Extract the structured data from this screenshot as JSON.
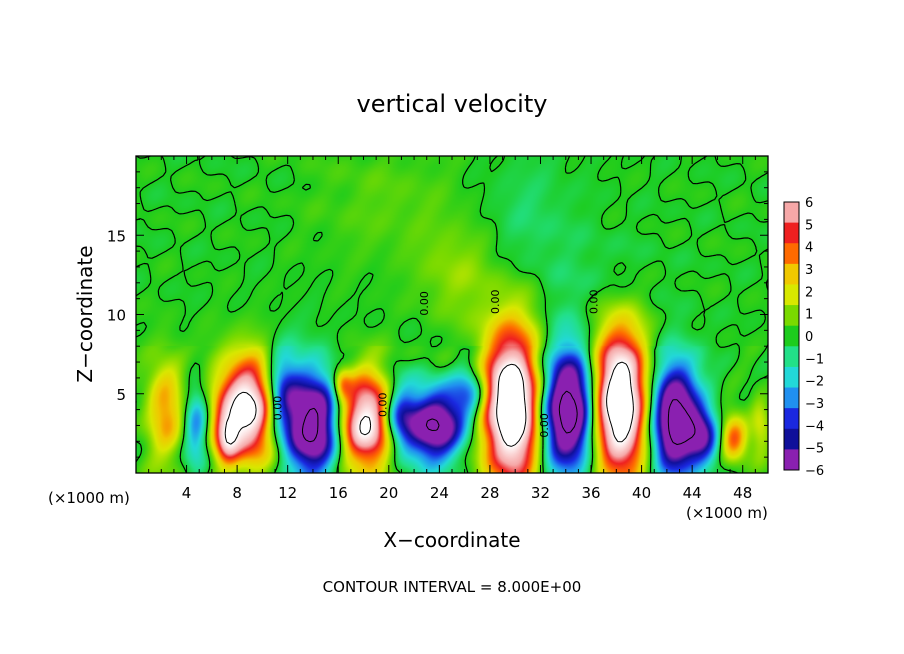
{
  "chart_data": {
    "type": "heatmap",
    "title": "vertical velocity",
    "xlabel": "X−coordinate",
    "ylabel": "Z−coordinate",
    "x_unit_left": "(×1000 m)",
    "x_unit_right": "(×1000 m)",
    "footer": "CONTOUR INTERVAL = 8.000E+00",
    "xlim": [
      0,
      50
    ],
    "ylim": [
      0,
      20
    ],
    "x_ticks": [
      4,
      8,
      12,
      16,
      20,
      24,
      28,
      32,
      36,
      40,
      44,
      48
    ],
    "x_tick_labels": [
      "4",
      "8",
      "12",
      "16",
      "20",
      "24",
      "28",
      "32",
      "36",
      "40",
      "44",
      "48"
    ],
    "y_ticks": [
      5,
      10,
      15
    ],
    "y_tick_labels": [
      "5",
      "10",
      "15"
    ],
    "colorbar": {
      "range": [
        -6,
        6
      ],
      "tick_labels": [
        "6",
        "5",
        "4",
        "3",
        "2",
        "1",
        "0",
        "−1",
        "−2",
        "−3",
        "−4",
        "−5",
        "−6"
      ],
      "colors": [
        "#f6a8a8",
        "#ef2020",
        "#ff6a00",
        "#f0c800",
        "#d8e800",
        "#7ada00",
        "#1dcc1d",
        "#22e088",
        "#22d8d8",
        "#2090f0",
        "#1a28e0",
        "#10109a",
        "#8a20b0"
      ]
    },
    "contour_labels": [
      {
        "text": "0.00",
        "x": 28.7,
        "y": 10.8
      },
      {
        "text": "0.00",
        "x": 23.1,
        "y": 10.7
      },
      {
        "text": "0.00",
        "x": 36.5,
        "y": 10.8
      },
      {
        "text": "0.00",
        "x": 11.5,
        "y": 4.1
      },
      {
        "text": "0.00",
        "x": 19.8,
        "y": 4.3
      },
      {
        "text": "0.00",
        "x": 32.6,
        "y": 3.0
      }
    ],
    "features": [
      {
        "type": "updraft",
        "x": 2.3,
        "z": 4.0,
        "w": 1.5,
        "h": 3.3,
        "amp": 3.5
      },
      {
        "type": "downdraft",
        "x": 4.8,
        "z": 3.0,
        "w": 1.0,
        "h": 2.6,
        "amp": -3.5
      },
      {
        "type": "updraft",
        "x": 7.2,
        "z": 2.2,
        "w": 0.9,
        "h": 1.6,
        "amp": 4.0
      },
      {
        "type": "updraft",
        "x": 8.9,
        "z": 4.0,
        "w": 2.6,
        "h": 3.2,
        "amp": 9.0
      },
      {
        "type": "downdraft",
        "x": 11.5,
        "z": 4.8,
        "w": 1.4,
        "h": 2.8,
        "amp": -5.0
      },
      {
        "type": "downdraft",
        "x": 14.0,
        "z": 3.1,
        "w": 2.2,
        "h": 3.2,
        "amp": -9.0
      },
      {
        "type": "updraft",
        "x": 16.3,
        "z": 5.6,
        "w": 0.7,
        "h": 1.0,
        "amp": 3.0
      },
      {
        "type": "updraft",
        "x": 18.2,
        "z": 3.2,
        "w": 2.3,
        "h": 3.0,
        "amp": 8.5
      },
      {
        "type": "downdraft",
        "x": 20.8,
        "z": 3.5,
        "w": 1.3,
        "h": 2.2,
        "amp": -4.5
      },
      {
        "type": "downdraft",
        "x": 23.6,
        "z": 3.0,
        "w": 2.3,
        "h": 2.2,
        "amp": -8.0
      },
      {
        "type": "downdraft",
        "x": 26.5,
        "z": 5.0,
        "w": 1.4,
        "h": 1.8,
        "amp": -3.5
      },
      {
        "type": "updraft",
        "x": 29.8,
        "z": 4.2,
        "w": 2.4,
        "h": 4.8,
        "amp": 11.0
      },
      {
        "type": "downdraft",
        "x": 34.2,
        "z": 4.0,
        "w": 2.3,
        "h": 3.8,
        "amp": -10.0
      },
      {
        "type": "updraft",
        "x": 38.2,
        "z": 4.4,
        "w": 2.3,
        "h": 4.6,
        "amp": 11.0
      },
      {
        "type": "downdraft",
        "x": 42.6,
        "z": 3.4,
        "w": 1.9,
        "h": 3.4,
        "amp": -9.5
      },
      {
        "type": "downdraft",
        "x": 44.9,
        "z": 2.3,
        "w": 1.3,
        "h": 1.6,
        "amp": -5.0
      },
      {
        "type": "updraft",
        "x": 47.3,
        "z": 2.2,
        "w": 1.1,
        "h": 1.4,
        "amp": 4.5
      },
      {
        "type": "updraft",
        "x": 49.4,
        "z": 3.0,
        "w": 0.8,
        "h": 2.0,
        "amp": 2.0
      },
      {
        "type": "updraft",
        "x": 20.0,
        "z": 17.0,
        "w": 6.0,
        "h": 4.0,
        "amp": 0.6
      },
      {
        "type": "updraft",
        "x": 25.5,
        "z": 12.5,
        "w": 3.0,
        "h": 3.0,
        "amp": 1.2
      },
      {
        "type": "downdraft",
        "x": 37.0,
        "z": 12.0,
        "w": 4.0,
        "h": 3.0,
        "amp": -0.6
      },
      {
        "type": "downdraft",
        "x": 31.0,
        "z": 16.0,
        "w": 3.5,
        "h": 4.0,
        "amp": -0.7
      }
    ]
  }
}
